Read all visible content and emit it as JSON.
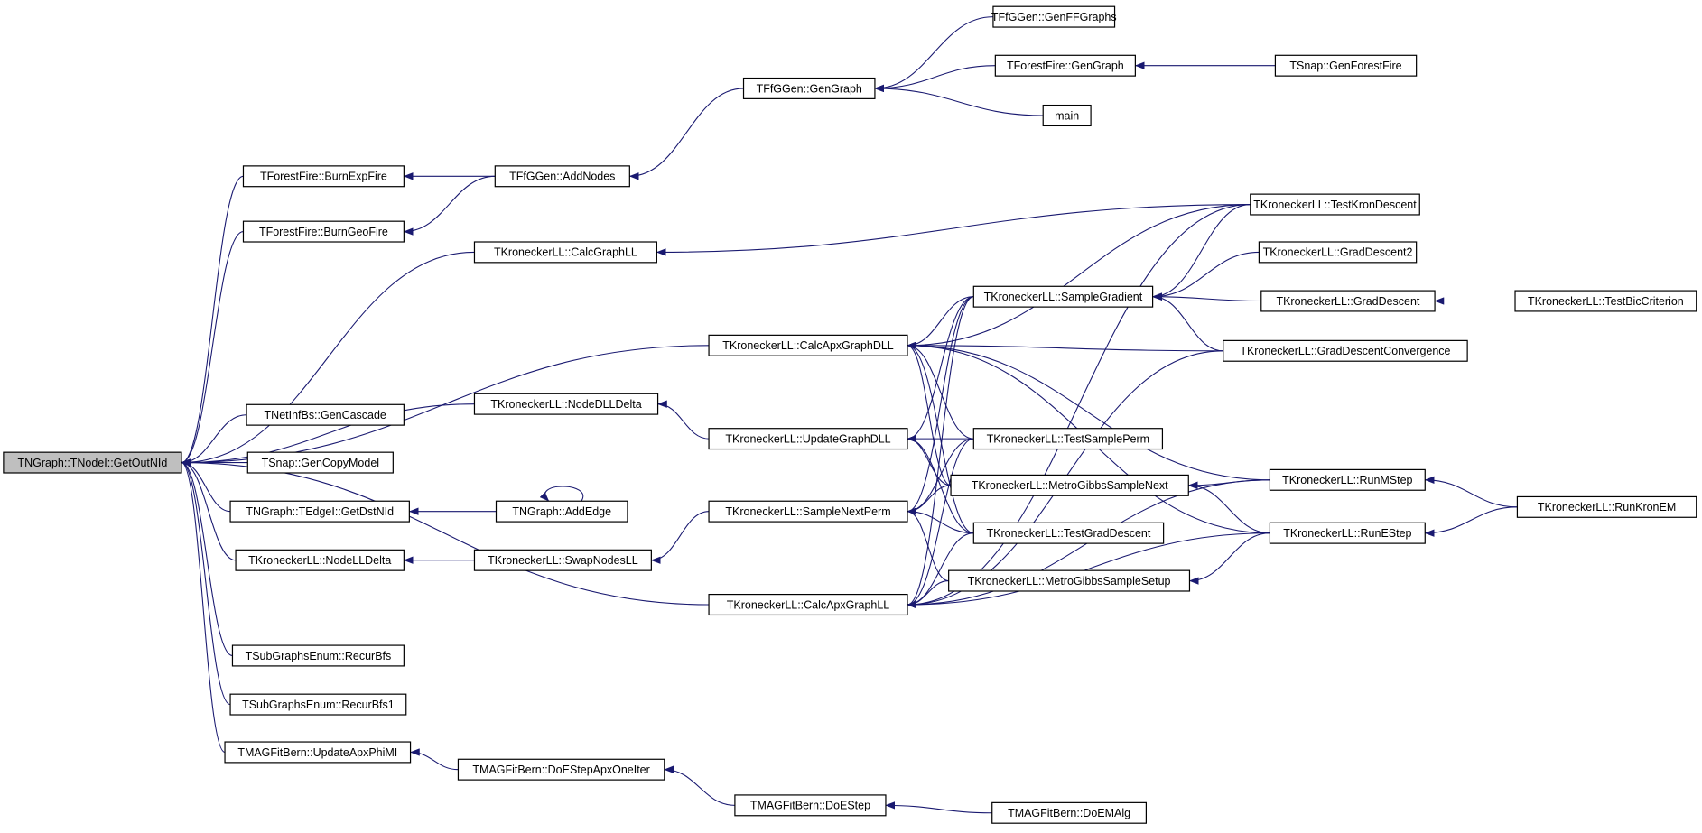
{
  "colors": {
    "edge": "#191970",
    "root_fill": "#bfbfbf",
    "node_fill": "#ffffff",
    "border": "#000000"
  },
  "nodes": {
    "GetOutNId": "TNGraph::TNodeI::GetOutNId",
    "BurnExpFire": "TForestFire::BurnExpFire",
    "BurnGeoFire": "TForestFire::BurnGeoFire",
    "AddNodes": "TFfGGen::AddNodes",
    "FfGenGraph": "TFfGGen::GenGraph",
    "GenFFGraphs": "TFfGGen::GenFFGraphs",
    "FFGenGraph": "TForestFire::GenGraph",
    "main": "main",
    "GenForestFire": "TSnap::GenForestFire",
    "CalcGraphLL": "TKroneckerLL::CalcGraphLL",
    "CalcApxGraphDLL": "TKroneckerLL::CalcApxGraphDLL",
    "NodeDLLDelta": "TKroneckerLL::NodeDLLDelta",
    "GenCascade": "TNetInfBs::GenCascade",
    "GenCopyModel": "TSnap::GenCopyModel",
    "GetDstNId": "TNGraph::TEdgeI::GetDstNId",
    "AddEdge": "TNGraph::AddEdge",
    "NodeLLDelta": "TKroneckerLL::NodeLLDelta",
    "SwapNodesLL": "TKroneckerLL::SwapNodesLL",
    "RecurBfs": "TSubGraphsEnum::RecurBfs",
    "RecurBfs1": "TSubGraphsEnum::RecurBfs1",
    "UpdateApxPhiMI": "TMAGFitBern::UpdateApxPhiMI",
    "DoEStepApxOneIter": "TMAGFitBern::DoEStepApxOneIter",
    "DoEStep": "TMAGFitBern::DoEStep",
    "DoEMAlg": "TMAGFitBern::DoEMAlg",
    "UpdateGraphDLL": "TKroneckerLL::UpdateGraphDLL",
    "SampleNextPerm": "TKroneckerLL::SampleNextPerm",
    "CalcApxGraphLL": "TKroneckerLL::CalcApxGraphLL",
    "SampleGradient": "TKroneckerLL::SampleGradient",
    "TestSamplePerm": "TKroneckerLL::TestSamplePerm",
    "MetroGibbsSampleNext": "TKroneckerLL::MetroGibbsSampleNext",
    "TestGradDescent": "TKroneckerLL::TestGradDescent",
    "MetroGibbsSampleSetup": "TKroneckerLL::MetroGibbsSampleSetup",
    "TestKronDescent": "TKroneckerLL::TestKronDescent",
    "GradDescent2": "TKroneckerLL::GradDescent2",
    "GradDescent": "TKroneckerLL::GradDescent",
    "TestBicCriterion": "TKroneckerLL::TestBicCriterion",
    "GradDescentConvergence": "TKroneckerLL::GradDescentConvergence",
    "RunMStep": "TKroneckerLL::RunMStep",
    "RunEStep": "TKroneckerLL::RunEStep",
    "RunKronEM": "TKroneckerLL::RunKronEM"
  },
  "edges": [
    [
      "BurnExpFire",
      "GetOutNId"
    ],
    [
      "BurnGeoFire",
      "GetOutNId"
    ],
    [
      "CalcGraphLL",
      "GetOutNId"
    ],
    [
      "CalcApxGraphDLL",
      "GetOutNId"
    ],
    [
      "NodeDLLDelta",
      "GetOutNId"
    ],
    [
      "GenCascade",
      "GetOutNId"
    ],
    [
      "GenCopyModel",
      "GetOutNId"
    ],
    [
      "GetDstNId",
      "GetOutNId"
    ],
    [
      "NodeLLDelta",
      "GetOutNId"
    ],
    [
      "CalcApxGraphLL",
      "GetOutNId"
    ],
    [
      "RecurBfs",
      "GetOutNId"
    ],
    [
      "RecurBfs1",
      "GetOutNId"
    ],
    [
      "UpdateApxPhiMI",
      "GetOutNId"
    ],
    [
      "AddNodes",
      "BurnExpFire"
    ],
    [
      "AddNodes",
      "BurnGeoFire"
    ],
    [
      "FfGenGraph",
      "AddNodes"
    ],
    [
      "GenFFGraphs",
      "FfGenGraph"
    ],
    [
      "FFGenGraph",
      "FfGenGraph"
    ],
    [
      "main",
      "FfGenGraph"
    ],
    [
      "GenForestFire",
      "FFGenGraph"
    ],
    [
      "TestKronDescent",
      "CalcGraphLL"
    ],
    [
      "UpdateGraphDLL",
      "NodeDLLDelta"
    ],
    [
      "AddEdge",
      "GetDstNId"
    ],
    [
      "AddEdge",
      "AddEdge"
    ],
    [
      "SwapNodesLL",
      "NodeLLDelta"
    ],
    [
      "SampleNextPerm",
      "SwapNodesLL"
    ],
    [
      "DoEStepApxOneIter",
      "UpdateApxPhiMI"
    ],
    [
      "DoEStep",
      "DoEStepApxOneIter"
    ],
    [
      "DoEMAlg",
      "DoEStep"
    ],
    [
      "SampleGradient",
      "CalcApxGraphDLL"
    ],
    [
      "TestKronDescent",
      "CalcApxGraphDLL"
    ],
    [
      "GradDescentConvergence",
      "CalcApxGraphDLL"
    ],
    [
      "TestSamplePerm",
      "CalcApxGraphDLL"
    ],
    [
      "MetroGibbsSampleNext",
      "CalcApxGraphDLL"
    ],
    [
      "TestGradDescent",
      "CalcApxGraphDLL"
    ],
    [
      "RunMStep",
      "CalcApxGraphDLL"
    ],
    [
      "RunEStep",
      "CalcApxGraphDLL"
    ],
    [
      "SampleGradient",
      "UpdateGraphDLL"
    ],
    [
      "TestSamplePerm",
      "UpdateGraphDLL"
    ],
    [
      "MetroGibbsSampleNext",
      "UpdateGraphDLL"
    ],
    [
      "TestGradDescent",
      "UpdateGraphDLL"
    ],
    [
      "SampleGradient",
      "SampleNextPerm"
    ],
    [
      "TestSamplePerm",
      "SampleNextPerm"
    ],
    [
      "MetroGibbsSampleNext",
      "SampleNextPerm"
    ],
    [
      "TestGradDescent",
      "SampleNextPerm"
    ],
    [
      "MetroGibbsSampleSetup",
      "SampleNextPerm"
    ],
    [
      "SampleGradient",
      "CalcApxGraphLL"
    ],
    [
      "TestSamplePerm",
      "CalcApxGraphLL"
    ],
    [
      "TestGradDescent",
      "CalcApxGraphLL"
    ],
    [
      "MetroGibbsSampleSetup",
      "CalcApxGraphLL"
    ],
    [
      "RunMStep",
      "CalcApxGraphLL"
    ],
    [
      "TestKronDescent",
      "CalcApxGraphLL"
    ],
    [
      "GradDescentConvergence",
      "CalcApxGraphLL"
    ],
    [
      "RunEStep",
      "CalcApxGraphLL"
    ],
    [
      "TestKronDescent",
      "SampleGradient"
    ],
    [
      "GradDescent2",
      "SampleGradient"
    ],
    [
      "GradDescent",
      "SampleGradient"
    ],
    [
      "GradDescentConvergence",
      "SampleGradient"
    ],
    [
      "TestBicCriterion",
      "GradDescent"
    ],
    [
      "RunMStep",
      "MetroGibbsSampleNext"
    ],
    [
      "RunEStep",
      "MetroGibbsSampleNext"
    ],
    [
      "RunEStep",
      "MetroGibbsSampleSetup"
    ],
    [
      "RunKronEM",
      "RunMStep"
    ],
    [
      "RunKronEM",
      "RunEStep"
    ]
  ]
}
